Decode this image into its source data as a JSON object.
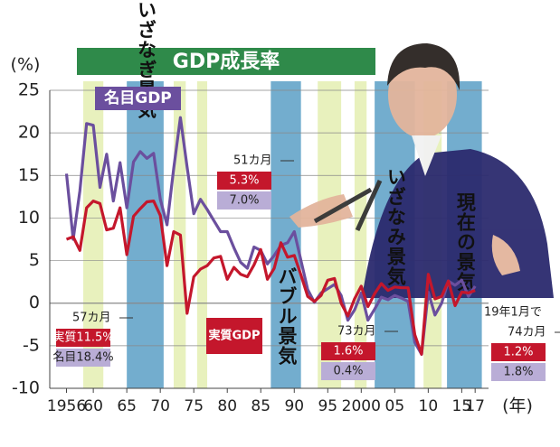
{
  "chart_data": {
    "type": "line",
    "title": "GDP成長率",
    "y_unit": "(%)",
    "x_unit": "(年)",
    "x": [
      1956,
      1957,
      1958,
      1959,
      1960,
      1961,
      1962,
      1963,
      1964,
      1965,
      1966,
      1967,
      1968,
      1969,
      1970,
      1971,
      1972,
      1973,
      1974,
      1975,
      1976,
      1977,
      1978,
      1979,
      1980,
      1981,
      1982,
      1983,
      1984,
      1985,
      1986,
      1987,
      1988,
      1989,
      1990,
      1991,
      1992,
      1993,
      1994,
      1995,
      1996,
      1997,
      1998,
      1999,
      2000,
      2001,
      2002,
      2003,
      2004,
      2005,
      2006,
      2007,
      2008,
      2009,
      2010,
      2011,
      2012,
      2013,
      2014,
      2015,
      2016,
      2017
    ],
    "series": [
      {
        "name": "名目GDP",
        "color": "#6b4f9e",
        "values": [
          15.2,
          7.5,
          13.2,
          21.1,
          20.9,
          13.6,
          17.5,
          12.0,
          16.5,
          11.2,
          16.6,
          17.8,
          17.0,
          17.6,
          12.2,
          9.2,
          15.8,
          21.8,
          16.0,
          10.5,
          12.2,
          11.0,
          9.7,
          8.4,
          8.4,
          6.5,
          4.8,
          4.1,
          6.6,
          6.2,
          4.6,
          5.6,
          6.8,
          7.1,
          8.4,
          5.0,
          1.6,
          0.1,
          1.2,
          1.7,
          2.2,
          0.9,
          -2.0,
          -0.8,
          1.2,
          -2.0,
          -0.7,
          0.7,
          0.4,
          0.9,
          0.6,
          0.2,
          -4.6,
          -6.0,
          1.3,
          -1.4,
          0.0,
          2.6,
          2.1,
          2.7,
          0.8,
          2.0
        ]
      },
      {
        "name": "実質GDP",
        "color": "#c4172c",
        "values": [
          7.5,
          7.8,
          6.2,
          11.2,
          12.0,
          11.7,
          8.6,
          8.8,
          11.2,
          5.7,
          10.2,
          11.1,
          11.9,
          12.0,
          10.3,
          4.4,
          8.4,
          8.0,
          -1.2,
          3.1,
          4.0,
          4.4,
          5.3,
          5.5,
          2.8,
          4.2,
          3.4,
          3.1,
          4.5,
          6.3,
          2.8,
          4.1,
          7.1,
          5.4,
          5.6,
          3.3,
          0.8,
          0.2,
          0.9,
          2.7,
          2.9,
          0.0,
          -1.5,
          0.5,
          2.0,
          -0.4,
          1.1,
          2.3,
          1.5,
          1.9,
          1.8,
          1.8,
          -3.7,
          -6.0,
          3.4,
          0.5,
          0.8,
          2.6,
          -0.3,
          1.3,
          1.2,
          1.5
        ]
      }
    ],
    "ylim": [
      -10,
      25
    ],
    "yticks": [
      25,
      20,
      15,
      10,
      5,
      0,
      -5,
      -10
    ],
    "xlim": [
      1953.5,
      2019
    ],
    "xticks": [
      1956,
      {
        "value": 1960,
        "label": "60"
      },
      {
        "value": 1965,
        "label": "65"
      },
      {
        "value": 1970,
        "label": "70"
      },
      {
        "value": 1975,
        "label": "75"
      },
      {
        "value": 1980,
        "label": "80"
      },
      {
        "value": 1985,
        "label": "85"
      },
      {
        "value": 1990,
        "label": "90"
      },
      {
        "value": 1995,
        "label": "95"
      },
      2000,
      {
        "value": 2005,
        "label": "05"
      },
      {
        "value": 2010,
        "label": "10"
      },
      {
        "value": 2015,
        "label": "15"
      },
      {
        "value": 2017,
        "label": "17"
      }
    ],
    "periods": [
      {
        "start": 1958.5,
        "end": 1961.5,
        "color": "#e4efb2"
      },
      {
        "start": 1965,
        "end": 1970.5,
        "color": "#5b9fc6",
        "label": "いざなぎ景気"
      },
      {
        "start": 1972,
        "end": 1973.8,
        "color": "#e4efb2"
      },
      {
        "start": 1975.5,
        "end": 1977,
        "color": "#e4efb2"
      },
      {
        "start": 1986.5,
        "end": 1991,
        "color": "#5b9fc6",
        "label": "バブル景気"
      },
      {
        "start": 1993.5,
        "end": 1997,
        "color": "#e4efb2"
      },
      {
        "start": 1999,
        "end": 2000.8,
        "color": "#e4efb2"
      },
      {
        "start": 2002,
        "end": 2008,
        "color": "#5b9fc6",
        "label": "いざなみ景気"
      },
      {
        "start": 2009.3,
        "end": 2012,
        "color": "#e4efb2"
      },
      {
        "start": 2012.8,
        "end": 2018,
        "color": "#5b9fc6",
        "label": "現在の景気"
      }
    ],
    "notes": [
      {
        "months": "57カ月",
        "real": "実質11.5%",
        "nominal": "名目18.4%"
      },
      {
        "months": "51カ月",
        "real": "5.3%",
        "nominal": "7.0%"
      },
      {
        "months": "73カ月",
        "real": "1.6%",
        "nominal": "0.4%"
      },
      {
        "prefix": "19年1月で",
        "months": "74カ月",
        "real": "1.2%",
        "nominal": "1.8%"
      }
    ]
  }
}
